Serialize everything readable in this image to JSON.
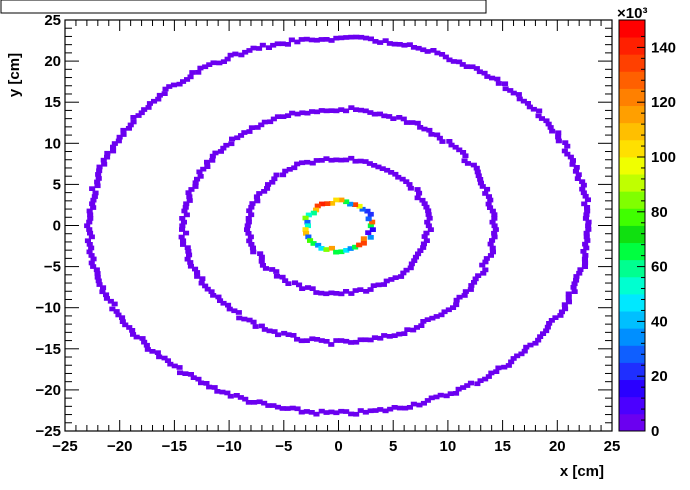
{
  "chart_data": {
    "type": "heatmap",
    "title": "",
    "xlabel": "x [cm]",
    "ylabel": "y [cm]",
    "xlim": [
      -25,
      25
    ],
    "ylim": [
      -25,
      25
    ],
    "x_ticks": [
      "−25",
      "−20",
      "−15",
      "−10",
      "−5",
      "0",
      "5",
      "10",
      "15",
      "20",
      "25"
    ],
    "y_ticks": [
      "−25",
      "−20",
      "−15",
      "−10",
      "−5",
      "0",
      "5",
      "10",
      "15",
      "20",
      "25"
    ],
    "colorbar": {
      "min": 0,
      "max": 150,
      "ticks": [
        "0",
        "20",
        "40",
        "60",
        "80",
        "100",
        "120",
        "140"
      ],
      "exponent_label": "×10³",
      "palette": [
        "#6b00f0",
        "#4b00ff",
        "#2a00ff",
        "#1f2fff",
        "#0f5fff",
        "#008fff",
        "#00bfff",
        "#00e8ff",
        "#00ffd0",
        "#00ff90",
        "#00ff40",
        "#10e010",
        "#40ff00",
        "#80ff00",
        "#c0ff00",
        "#f0ff00",
        "#ffe000",
        "#ffbf00",
        "#ff9f00",
        "#ff8000",
        "#ff6000",
        "#ff4000",
        "#ff2000",
        "#ff0000"
      ]
    },
    "rings": [
      {
        "radius_cm": 22.8,
        "value": 1
      },
      {
        "radius_cm": 14.2,
        "value": 1
      },
      {
        "radius_cm": 8.2,
        "value": 1
      },
      {
        "radius_cm": 3.0,
        "value_range": [
          10,
          145
        ]
      }
    ],
    "grid": false,
    "legend": "none"
  }
}
